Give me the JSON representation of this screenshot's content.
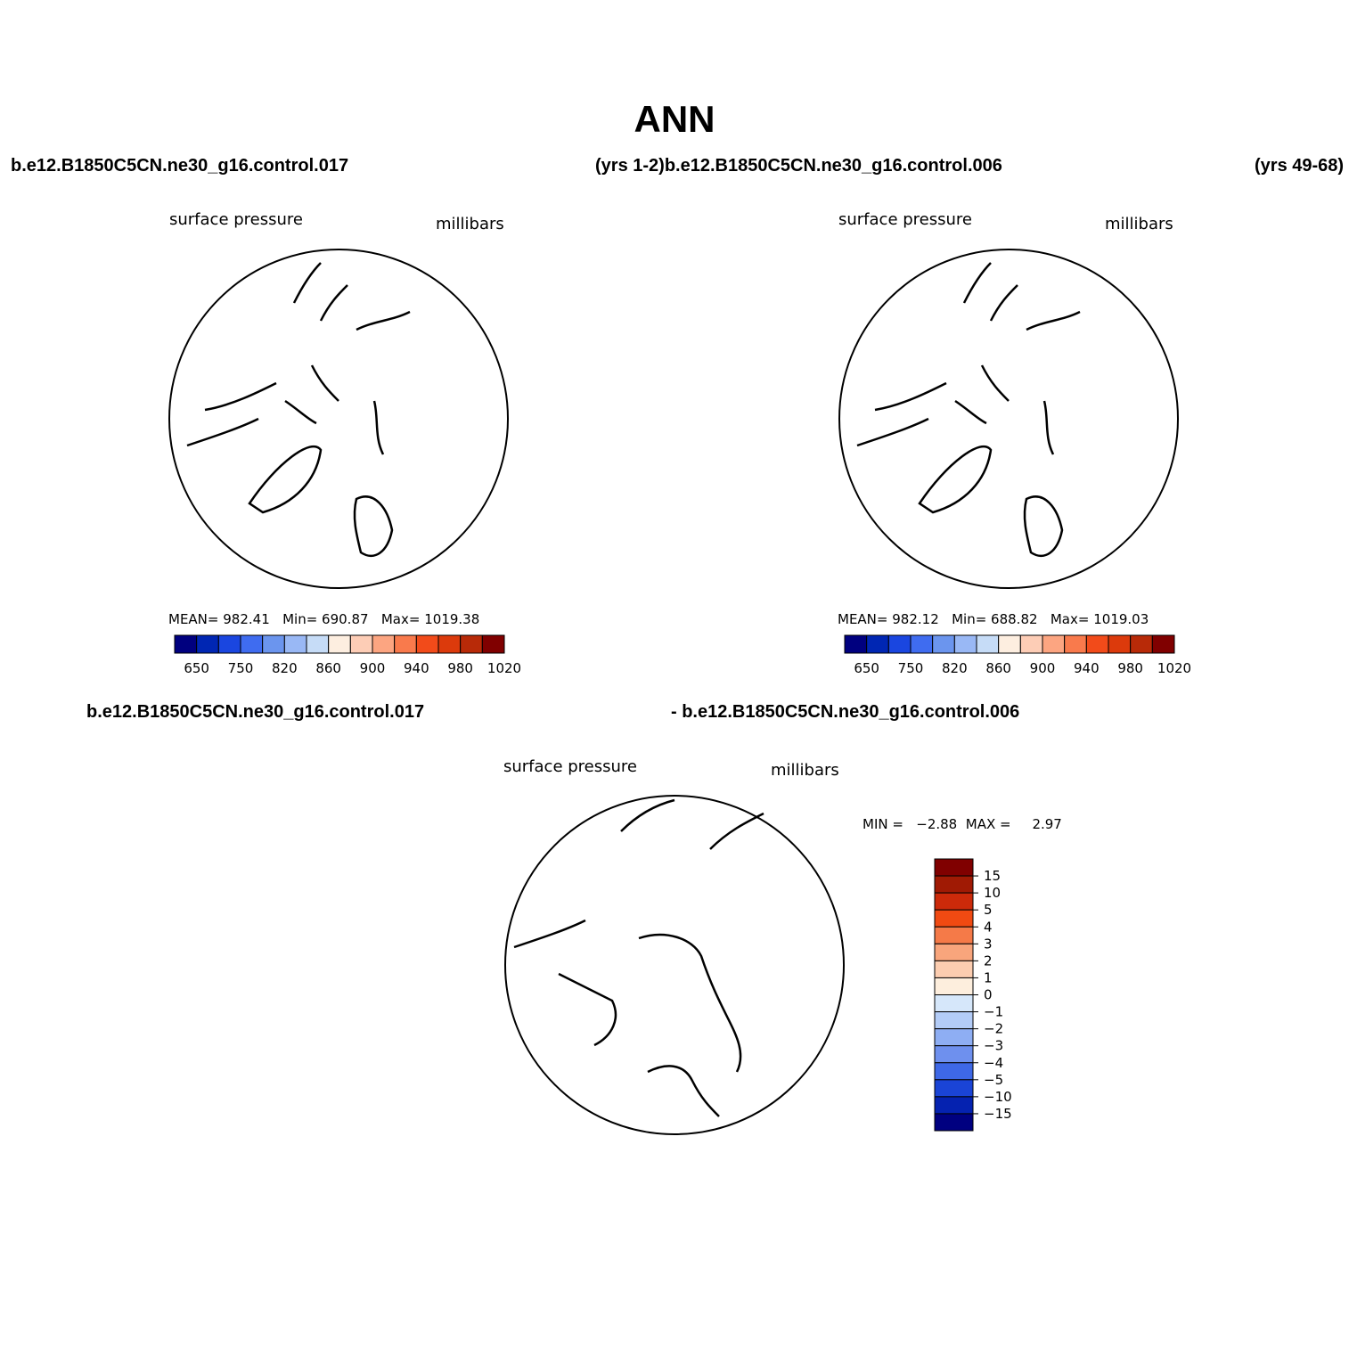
{
  "page": {
    "title": "ANN",
    "case_left": "b.e12.B1850C5CN.ne30_g16.control.017",
    "case_mid": "(yrs 1-2)b.e12.B1850C5CN.ne30_g16.control.006",
    "case_right": "(yrs 49-68)",
    "diff_left": "b.e12.B1850C5CN.ne30_g16.control.017",
    "diff_right": "- b.e12.B1850C5CN.ne30_g16.control.006"
  },
  "panels": [
    {
      "variable": "surface pressure",
      "units": "millibars",
      "stats": {
        "mean_label": "MEAN=",
        "mean": "982.41",
        "min_label": "Min=",
        "min": "690.87",
        "max_label": "Max=",
        "max": "1019.38"
      }
    },
    {
      "variable": "surface pressure",
      "units": "millibars",
      "stats": {
        "mean_label": "MEAN=",
        "mean": "982.12",
        "min_label": "Min=",
        "min": "688.82",
        "max_label": "Max=",
        "max": "1019.03"
      }
    },
    {
      "variable": "surface pressure",
      "units": "millibars",
      "stats": {
        "min_label": "MIN =",
        "min": "−2.88",
        "max_label": "MAX =",
        "max": "2.97"
      }
    }
  ],
  "colorbars": {
    "absolute": {
      "colors": [
        "#00007f",
        "#0026b3",
        "#1a46e0",
        "#3f6cf0",
        "#6b95ee",
        "#99b8f5",
        "#c6dcf7",
        "#fdeee0",
        "#fdcdb6",
        "#fca581",
        "#f97a4c",
        "#f24b1a",
        "#dc3a0c",
        "#b82a08",
        "#800000"
      ],
      "labels": [
        "650",
        "750",
        "820",
        "860",
        "900",
        "940",
        "980",
        "1020"
      ]
    },
    "difference": {
      "colors": [
        "#800000",
        "#a01a04",
        "#cc2a0a",
        "#f04a12",
        "#f57a48",
        "#f8a57c",
        "#fccdb0",
        "#fdeedd",
        "#d6e7fa",
        "#b3ccf7",
        "#8eaef3",
        "#6e90ee",
        "#3e68e6",
        "#1a44d6",
        "#0522b0",
        "#000080"
      ],
      "labels": [
        "15",
        "10",
        "5",
        "4",
        "3",
        "2",
        "1",
        "0",
        "−1",
        "−2",
        "−3",
        "−4",
        "−5",
        "−10",
        "−15"
      ]
    }
  },
  "fields": {
    "absolute_background": "#b82a08",
    "ocean_color": "#e23a0e"
  }
}
